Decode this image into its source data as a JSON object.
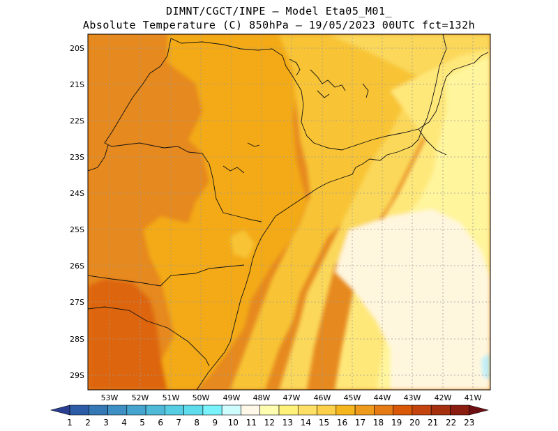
{
  "header": {
    "line1": "DIMNT/CGCT/INPE –  Model Eta05_M01_",
    "line2": "Absolute Temperature (C) 850hPa –  19/05/2023 00UTC fct=132h"
  },
  "axes": {
    "lat_labels": [
      "20S",
      "21S",
      "22S",
      "23S",
      "24S",
      "25S",
      "26S",
      "27S",
      "28S",
      "29S"
    ],
    "lon_labels": [
      "53W",
      "52W",
      "51W",
      "50W",
      "49W",
      "48W",
      "47W",
      "46W",
      "45W",
      "44W",
      "43W",
      "42W",
      "41W"
    ]
  },
  "colorbar": {
    "labels": [
      "1",
      "2",
      "3",
      "4",
      "5",
      "6",
      "7",
      "8",
      "9",
      "10",
      "11",
      "12",
      "13",
      "14",
      "15",
      "16",
      "17",
      "18",
      "19",
      "20",
      "21",
      "22",
      "23"
    ],
    "colors": [
      "#2a3f91",
      "#2c5ca5",
      "#3478b5",
      "#3e8fc3",
      "#46a5cf",
      "#4ebad8",
      "#56cde2",
      "#5fdcec",
      "#7af2fb",
      "#cffcff",
      "#fff8e8",
      "#fffdb0",
      "#fff179",
      "#ffe066",
      "#fcd04b",
      "#f5b51c",
      "#ee9b1d",
      "#e57b15",
      "#d95807",
      "#c44410",
      "#a5300d",
      "#8a1d0f",
      "#6e1012"
    ]
  }
}
